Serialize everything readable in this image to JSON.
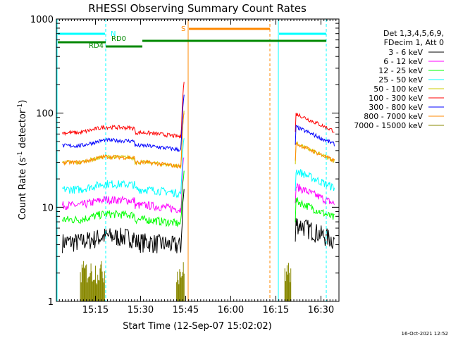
{
  "chart_data": {
    "type": "line",
    "title": "RHESSI Observing Summary Count Rates",
    "xlabel": "Start Time (12-Sep-07 15:02:02)",
    "ylabel_main": "Count Rate (s",
    "ylabel_sup1": "-1",
    "ylabel_mid": " detector",
    "ylabel_sup2": "-1",
    "ylabel_end": ")",
    "y_scale": "log",
    "ylim": [
      1,
      1000
    ],
    "xlim_min_from_start": [
      0,
      94
    ],
    "x_ticks": [
      {
        "label": "15:15",
        "min": 13
      },
      {
        "label": "15:30",
        "min": 28
      },
      {
        "label": "15:45",
        "min": 43
      },
      {
        "label": "16:00",
        "min": 58
      },
      {
        "label": "16:15",
        "min": 73
      },
      {
        "label": "16:30",
        "min": 88
      }
    ],
    "y_ticks": [
      {
        "label": "1",
        "value": 1
      },
      {
        "label": "10",
        "value": 10
      },
      {
        "label": "100",
        "value": 100
      },
      {
        "label": "1000",
        "value": 1000
      }
    ],
    "legend_title": [
      "Det 1,3,4,5,6,9,",
      "FDecim 1, Att 0"
    ],
    "series": [
      {
        "name": "3 - 6 keV",
        "color": "#000000"
      },
      {
        "name": "6 - 12 keV",
        "color": "#ff00ff"
      },
      {
        "name": "12 - 25 keV",
        "color": "#00ff00"
      },
      {
        "name": "25 - 50 keV",
        "color": "#00ffff"
      },
      {
        "name": "50 - 100 keV",
        "color": "#cccc00"
      },
      {
        "name": "100 - 300 keV",
        "color": "#ff0000"
      },
      {
        "name": "300 - 800 keV",
        "color": "#0000ff"
      },
      {
        "name": "800 - 7000 keV",
        "color": "#ff8800"
      },
      {
        "name": "7000 - 15000 keV",
        "color": "#888800"
      }
    ],
    "flags": [
      {
        "label": "N",
        "color": "#00ffff"
      },
      {
        "label": "RD0",
        "color": "#008800"
      },
      {
        "label": "RD4",
        "color": "#008800"
      },
      {
        "label": "S",
        "color": "#ff8800"
      }
    ],
    "timestamp": "16-Oct-2021 12:52"
  }
}
